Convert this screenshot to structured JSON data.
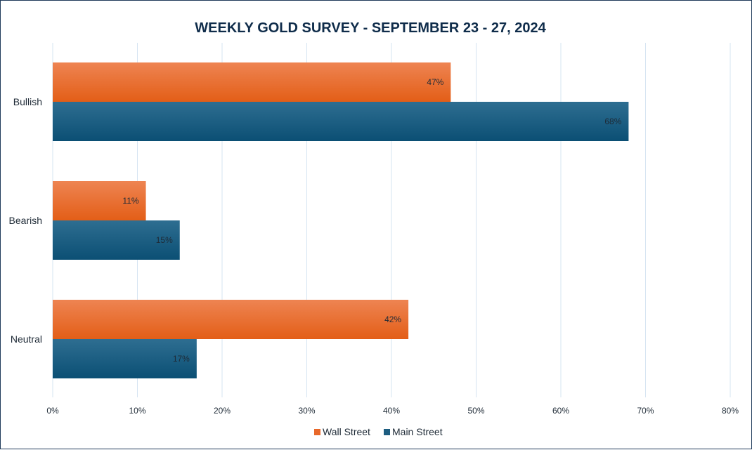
{
  "chart_data": {
    "type": "bar",
    "orientation": "horizontal",
    "title": "WEEKLY GOLD SURVEY - SEPTEMBER 23 - 27, 2024",
    "categories": [
      "Bullish",
      "Bearish",
      "Neutral"
    ],
    "series": [
      {
        "name": "Wall Street",
        "values": [
          47,
          11,
          42
        ],
        "labels": [
          "47%",
          "11%",
          "42%"
        ],
        "color": "#e8682a"
      },
      {
        "name": "Main Street",
        "values": [
          68,
          15,
          17
        ],
        "labels": [
          "68%",
          "15%",
          "17%"
        ],
        "color": "#1d5d80"
      }
    ],
    "xlim": [
      0,
      80
    ],
    "x_ticks": [
      "0%",
      "10%",
      "20%",
      "30%",
      "40%",
      "50%",
      "60%",
      "70%",
      "80%"
    ],
    "x_tick_values": [
      0,
      10,
      20,
      30,
      40,
      50,
      60,
      70,
      80
    ],
    "grid": "vertical",
    "legend_position": "bottom"
  },
  "colors": {
    "grid": "#d6e4f2",
    "frame": "#1f3a5a",
    "title": "#0f2c4a"
  }
}
